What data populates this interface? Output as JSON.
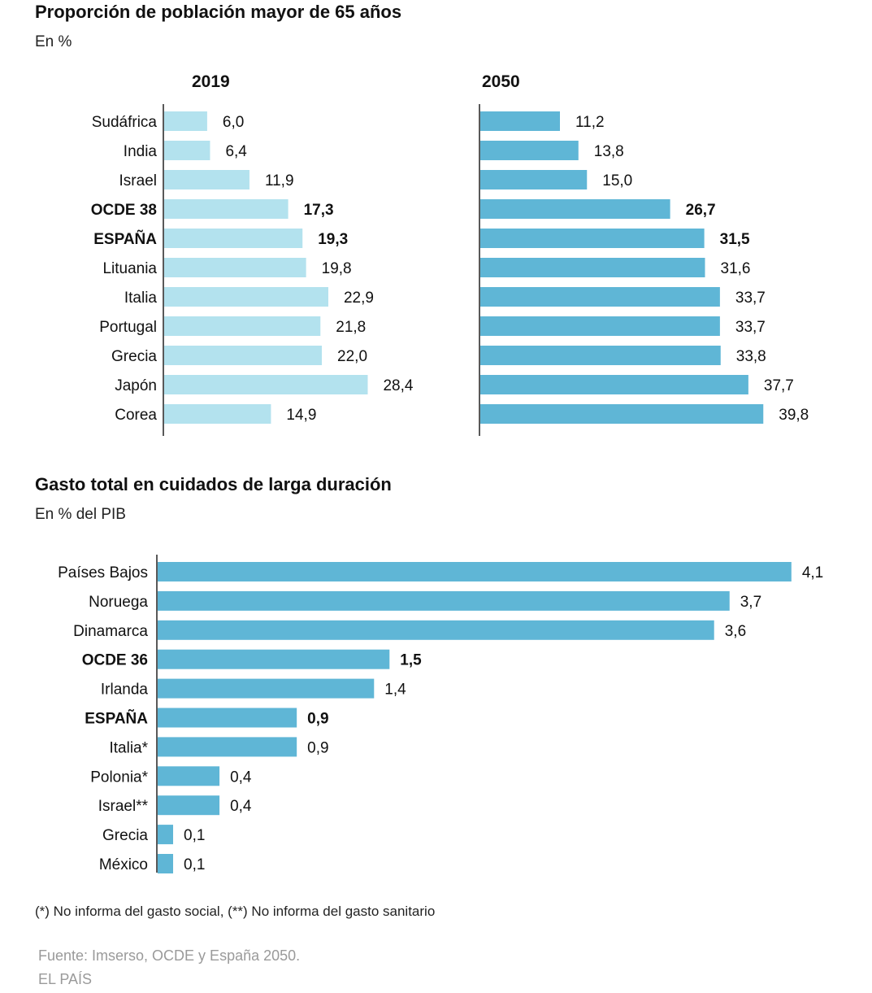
{
  "chart_data": [
    {
      "type": "bar",
      "orientation": "horizontal",
      "title": "Proporción de población mayor de 65 años",
      "subtitle": "En %",
      "categories": [
        "Sudáfrica",
        "India",
        "Israel",
        "OCDE 38",
        "ESPAÑA",
        "Lituania",
        "Italia",
        "Portugal",
        "Grecia",
        "Japón",
        "Corea"
      ],
      "highlighted": [
        "OCDE 38",
        "ESPAÑA"
      ],
      "series": [
        {
          "name": "2019",
          "color": "#b3e2ee",
          "values": [
            6.0,
            6.4,
            11.9,
            17.3,
            19.3,
            19.8,
            22.9,
            21.8,
            22.0,
            28.4,
            14.9
          ],
          "labels": [
            "6,0",
            "6,4",
            "11,9",
            "17,3",
            "19,3",
            "19,8",
            "22,9",
            "21,8",
            "22,0",
            "28,4",
            "14,9"
          ]
        },
        {
          "name": "2050",
          "color": "#5fb6d6",
          "values": [
            11.2,
            13.8,
            15.0,
            26.7,
            31.5,
            31.6,
            33.7,
            33.7,
            33.8,
            37.7,
            39.8
          ],
          "labels": [
            "11,2",
            "13,8",
            "15,0",
            "26,7",
            "31,5",
            "31,6",
            "33,7",
            "33,7",
            "33,8",
            "37,7",
            "39,8"
          ]
        }
      ],
      "grid": false,
      "legend": "none"
    },
    {
      "type": "bar",
      "orientation": "horizontal",
      "title": "Gasto total en cuidados de larga duración",
      "subtitle": "En % del PIB",
      "categories": [
        "Países Bajos",
        "Noruega",
        "Dinamarca",
        "OCDE 36",
        "Irlanda",
        "ESPAÑA",
        "Italia*",
        "Polonia*",
        "Israel**",
        "Grecia",
        "México"
      ],
      "highlighted": [
        "OCDE 36",
        "ESPAÑA"
      ],
      "values": [
        4.1,
        3.7,
        3.6,
        1.5,
        1.4,
        0.9,
        0.9,
        0.4,
        0.4,
        0.1,
        0.1
      ],
      "labels": [
        "4,1",
        "3,7",
        "3,6",
        "1,5",
        "1,4",
        "0,9",
        "0,9",
        "0,4",
        "0,4",
        "0,1",
        "0,1"
      ],
      "color": "#5fb6d6",
      "grid": false,
      "legend": "none"
    }
  ],
  "footnote": "(*) No informa del gasto social, (**) No informa del gasto sanitario",
  "source": "Fuente: Imserso, OCDE y España 2050.",
  "brand": "EL PAÍS"
}
